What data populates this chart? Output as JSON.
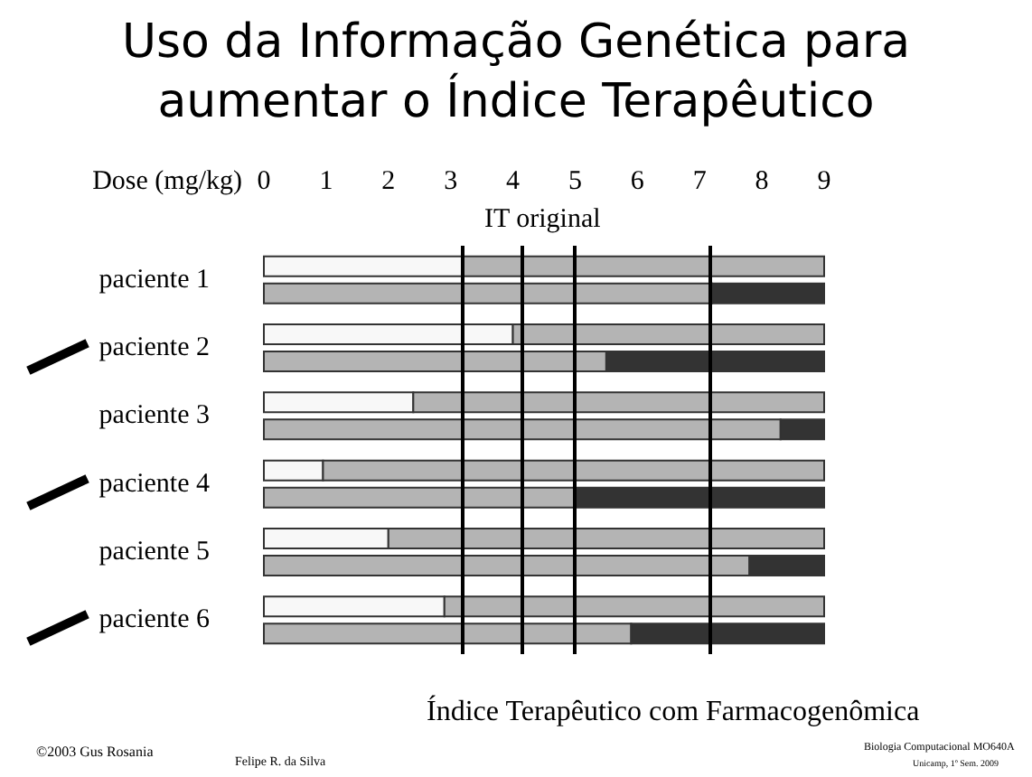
{
  "chart_data": {
    "type": "bar",
    "orientation": "horizontal",
    "title": "Uso da Informação Genética para\naumentar o Índice Terapêutico",
    "xlabel": "Dose (mg/kg)",
    "categories": [
      "paciente 1",
      "paciente 2",
      "paciente 3",
      "paciente 4",
      "paciente 5",
      "paciente 6"
    ],
    "series": [
      {
        "color": "#f8f8f8",
        "base": [
          0,
          0,
          0,
          0,
          0,
          0
        ],
        "values": [
          3.2,
          4.0,
          2.4,
          0.95,
          2.0,
          2.9
        ]
      },
      {
        "color": "#b4b4b4",
        "base": [
          3.2,
          4.0,
          2.4,
          0.95,
          2.0,
          2.9
        ],
        "values": [
          5.8,
          5.0,
          6.6,
          8.05,
          7.0,
          6.1
        ]
      },
      {
        "color": "#b4b4b4",
        "base": [
          0,
          0,
          0,
          0,
          0,
          0
        ],
        "values": [
          7.2,
          5.5,
          8.3,
          5.0,
          7.8,
          5.9
        ]
      },
      {
        "color": "#333333",
        "base": [
          7.2,
          5.5,
          8.3,
          5.0,
          7.8,
          5.9
        ],
        "values": [
          1.8,
          3.5,
          0.7,
          4.0,
          1.2,
          3.1
        ]
      }
    ],
    "xlim": [
      0,
      9
    ],
    "xticks": [
      0,
      1,
      2,
      3,
      4,
      5,
      6,
      7,
      8,
      9
    ],
    "grid": false,
    "ref_lines": [
      {
        "axis": "x",
        "value": 3.2,
        "color": "#000000"
      },
      {
        "axis": "x",
        "value": 4.15,
        "color": "#000000"
      },
      {
        "axis": "x",
        "value": 5.0,
        "color": "#000000"
      },
      {
        "axis": "x",
        "value": 7.15,
        "color": "#000000"
      }
    ],
    "annotations": [
      "IT original",
      "Índice Terapêutico com Farmacogenômica",
      "©2003 Gus Rosania",
      "Felipe R. da Silva",
      "Biologia Computacional MO640A",
      "Unicamp, 1º Sem. 2009"
    ]
  }
}
